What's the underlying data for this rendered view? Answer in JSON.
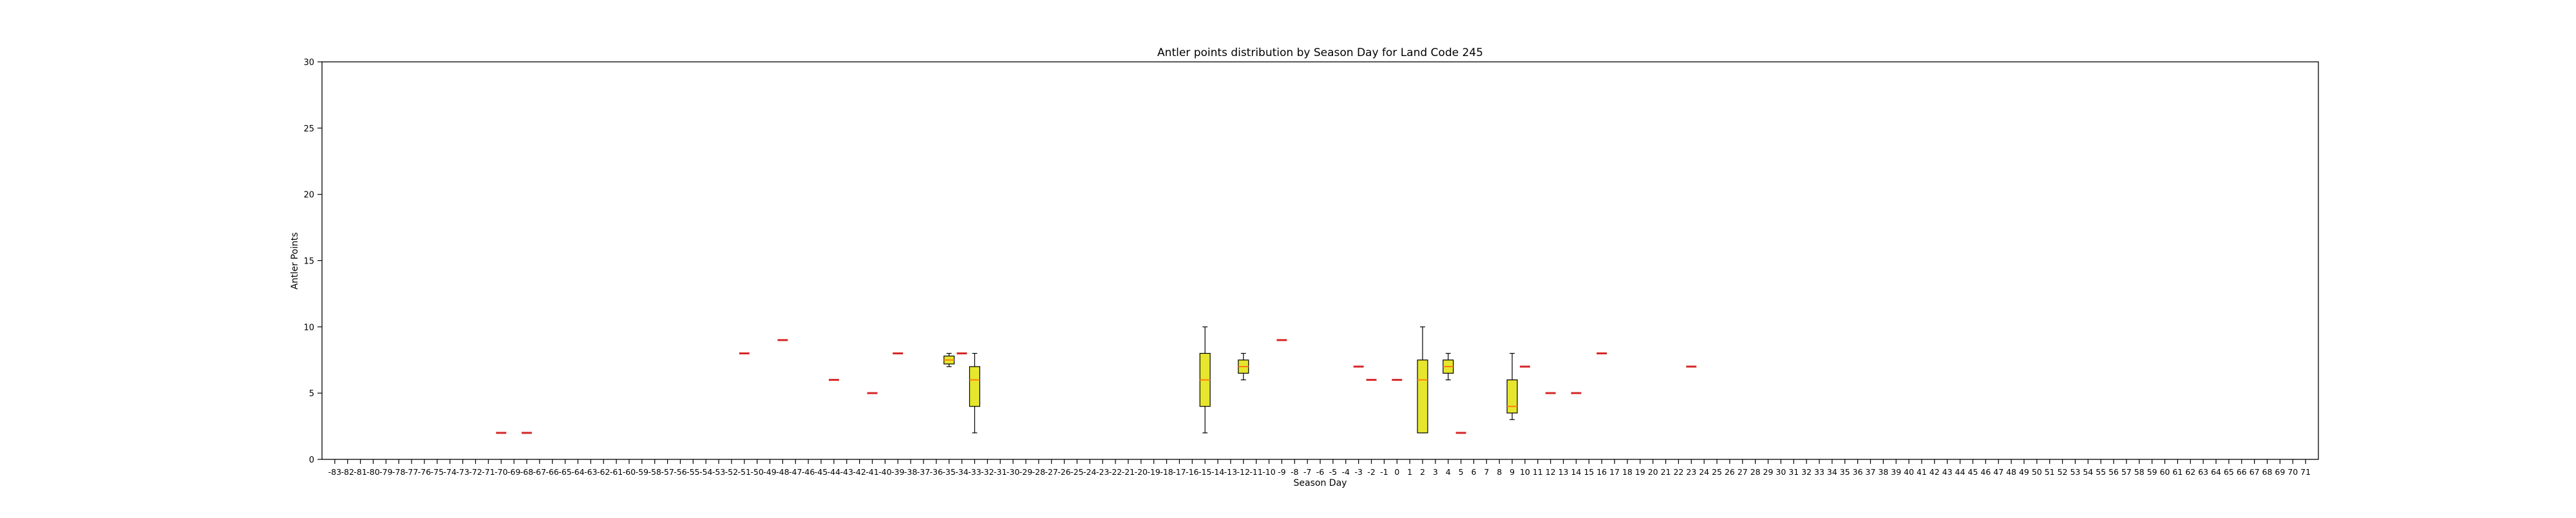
{
  "chart_data": {
    "type": "box",
    "title": "Antler points distribution by Season Day for Land Code 245",
    "xlabel": "Season Day",
    "ylabel": "Antler Points",
    "ylim": [
      0,
      30
    ],
    "yticks": [
      0,
      5,
      10,
      15,
      20,
      25,
      30
    ],
    "x_categories": [
      -83,
      -82,
      -81,
      -80,
      -79,
      -78,
      -77,
      -76,
      -75,
      -74,
      -73,
      -72,
      -71,
      -70,
      -69,
      -68,
      -67,
      -66,
      -65,
      -64,
      -63,
      -62,
      -61,
      -60,
      -59,
      -58,
      -57,
      -56,
      -55,
      -54,
      -53,
      -52,
      -51,
      -50,
      -49,
      -48,
      -47,
      -46,
      -45,
      -44,
      -43,
      -42,
      -41,
      -40,
      -39,
      -38,
      -37,
      -36,
      -35,
      -34,
      -33,
      -32,
      -31,
      -30,
      -29,
      -28,
      -27,
      -26,
      -25,
      -24,
      -23,
      -22,
      -21,
      -20,
      -19,
      -18,
      -17,
      -16,
      -15,
      -14,
      -13,
      -12,
      -11,
      -10,
      -9,
      -8,
      -7,
      -6,
      -5,
      -4,
      -3,
      -2,
      -1,
      0,
      1,
      2,
      3,
      4,
      5,
      6,
      7,
      8,
      9,
      10,
      11,
      12,
      13,
      14,
      15,
      16,
      17,
      18,
      19,
      20,
      21,
      22,
      23,
      24,
      25,
      26,
      27,
      28,
      29,
      30,
      31,
      32,
      33,
      34,
      35,
      36,
      37,
      38,
      39,
      40,
      41,
      42,
      43,
      44,
      45,
      46,
      47,
      48,
      49,
      50,
      51,
      52,
      53,
      54,
      55,
      56,
      57,
      58,
      59,
      60,
      61,
      62,
      63,
      64,
      65,
      66,
      67,
      68,
      69,
      70,
      71
    ],
    "grid": false,
    "box_color": "#e6e62e",
    "median_color": "#ff7f0e",
    "single_value_color": "#d62728",
    "boxes": [
      {
        "day": -70,
        "min": 2,
        "q1": 2,
        "median": 2,
        "q3": 2,
        "max": 2
      },
      {
        "day": -68,
        "min": 2,
        "q1": 2,
        "median": 2,
        "q3": 2,
        "max": 2
      },
      {
        "day": -51,
        "min": 8,
        "q1": 8,
        "median": 8,
        "q3": 8,
        "max": 8
      },
      {
        "day": -48,
        "min": 9,
        "q1": 9,
        "median": 9,
        "q3": 9,
        "max": 9
      },
      {
        "day": -44,
        "min": 6,
        "q1": 6,
        "median": 6,
        "q3": 6,
        "max": 6
      },
      {
        "day": -41,
        "min": 5,
        "q1": 5,
        "median": 5,
        "q3": 5,
        "max": 5
      },
      {
        "day": -39,
        "min": 8,
        "q1": 8,
        "median": 8,
        "q3": 8,
        "max": 8
      },
      {
        "day": -35,
        "min": 7,
        "q1": 7.2,
        "median": 7.5,
        "q3": 7.8,
        "max": 8
      },
      {
        "day": -34,
        "min": 8,
        "q1": 8,
        "median": 8,
        "q3": 8,
        "max": 8
      },
      {
        "day": -33,
        "min": 2,
        "q1": 4,
        "median": 6,
        "q3": 7,
        "max": 8
      },
      {
        "day": -15,
        "min": 2,
        "q1": 4,
        "median": 6,
        "q3": 8,
        "max": 10
      },
      {
        "day": -12,
        "min": 6,
        "q1": 6.5,
        "median": 7,
        "q3": 7.5,
        "max": 8
      },
      {
        "day": -9,
        "min": 9,
        "q1": 9,
        "median": 9,
        "q3": 9,
        "max": 9
      },
      {
        "day": -3,
        "min": 7,
        "q1": 7,
        "median": 7,
        "q3": 7,
        "max": 7
      },
      {
        "day": -2,
        "min": 6,
        "q1": 6,
        "median": 6,
        "q3": 6,
        "max": 6
      },
      {
        "day": 0,
        "min": 6,
        "q1": 6,
        "median": 6,
        "q3": 6,
        "max": 6
      },
      {
        "day": 2,
        "min": 2,
        "q1": 2,
        "median": 6,
        "q3": 7.5,
        "max": 10
      },
      {
        "day": 4,
        "min": 6,
        "q1": 6.5,
        "median": 7,
        "q3": 7.5,
        "max": 8
      },
      {
        "day": 5,
        "min": 2,
        "q1": 2,
        "median": 2,
        "q3": 2,
        "max": 2
      },
      {
        "day": 9,
        "min": 3,
        "q1": 3.5,
        "median": 4,
        "q3": 6,
        "max": 8
      },
      {
        "day": 10,
        "min": 7,
        "q1": 7,
        "median": 7,
        "q3": 7,
        "max": 7
      },
      {
        "day": 12,
        "min": 5,
        "q1": 5,
        "median": 5,
        "q3": 5,
        "max": 5
      },
      {
        "day": 14,
        "min": 5,
        "q1": 5,
        "median": 5,
        "q3": 5,
        "max": 5
      },
      {
        "day": 16,
        "min": 8,
        "q1": 8,
        "median": 8,
        "q3": 8,
        "max": 8
      },
      {
        "day": 23,
        "min": 7,
        "q1": 7,
        "median": 7,
        "q3": 7,
        "max": 7
      }
    ]
  }
}
